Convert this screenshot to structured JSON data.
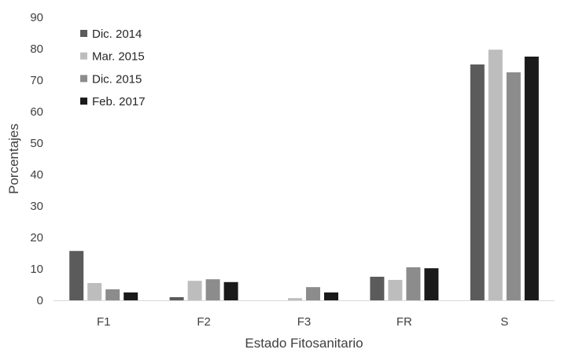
{
  "chart_data": {
    "type": "bar",
    "categories": [
      "F1",
      "F2",
      "F3",
      "FR",
      "S"
    ],
    "series": [
      {
        "name": "Dic. 2014",
        "color": "#5b5b5b",
        "values": [
          15.7,
          1.0,
          0.0,
          7.5,
          75.0
        ]
      },
      {
        "name": "Mar. 2015",
        "color": "#bdbdbd",
        "values": [
          5.5,
          6.2,
          0.7,
          6.5,
          79.7
        ]
      },
      {
        "name": "Dic. 2015",
        "color": "#8c8c8c",
        "values": [
          3.5,
          6.7,
          4.2,
          10.5,
          72.5
        ]
      },
      {
        "name": "Feb. 2017",
        "color": "#1a1a1a",
        "values": [
          2.5,
          5.8,
          2.5,
          10.2,
          77.5
        ]
      }
    ],
    "title": "",
    "xlabel": "Estado Fitosanitario",
    "ylabel": "Porcentajes",
    "ylim": [
      0,
      90
    ],
    "yticks": [
      "0",
      "10",
      "20",
      "30",
      "40",
      "50",
      "60",
      "70",
      "80",
      "90"
    ],
    "grid": false,
    "legend_position": "top-left"
  }
}
